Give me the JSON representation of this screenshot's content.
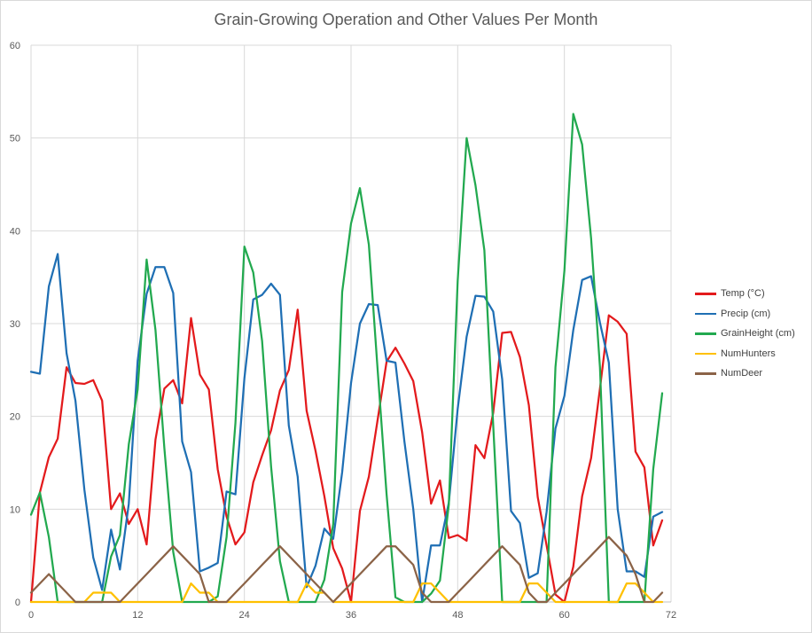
{
  "chart_data": {
    "type": "line",
    "title": "Grain-Growing Operation and Other Values Per Month",
    "xlabel": "",
    "ylabel": "",
    "xlim": [
      0,
      72
    ],
    "ylim": [
      0,
      60
    ],
    "x_ticks": [
      "0",
      "12",
      "24",
      "36",
      "48",
      "60",
      "72"
    ],
    "y_ticks": [
      "0",
      "10",
      "20",
      "30",
      "40",
      "50",
      "60"
    ],
    "grid": true,
    "legend_position": "right",
    "x": [
      0,
      1,
      2,
      3,
      4,
      5,
      6,
      7,
      8,
      9,
      10,
      11,
      12,
      13,
      14,
      15,
      16,
      17,
      18,
      19,
      20,
      21,
      22,
      23,
      24,
      25,
      26,
      27,
      28,
      29,
      30,
      31,
      32,
      33,
      34,
      35,
      36,
      37,
      38,
      39,
      40,
      41,
      42,
      43,
      44,
      45,
      46,
      47,
      48,
      49,
      50,
      51,
      52,
      53,
      54,
      55,
      56,
      57,
      58,
      59,
      60,
      61,
      62,
      63,
      64,
      65,
      66,
      67,
      68,
      69,
      70,
      71
    ],
    "series": [
      {
        "name": "Temp (°C)",
        "color": "#e31a1c",
        "values": [
          0,
          11.8,
          15.6,
          17.6,
          25.3,
          23.6,
          23.5,
          23.9,
          21.7,
          10,
          11.7,
          8.4,
          10,
          6.2,
          17.5,
          23,
          23.9,
          21.4,
          30.6,
          24.5,
          22.9,
          14.3,
          9.2,
          6.2,
          7.5,
          12.9,
          15.8,
          18.5,
          22.8,
          25,
          31.5,
          20.6,
          16.3,
          11.4,
          5.8,
          3.6,
          0,
          9.8,
          13.5,
          19.7,
          25.9,
          27.4,
          25.7,
          23.8,
          18.3,
          10.6,
          13.1,
          6.9,
          7.2,
          6.6,
          16.9,
          15.5,
          20.4,
          29,
          29.1,
          26.4,
          21.2,
          11.3,
          6.1,
          0.8,
          0,
          3.8,
          11.4,
          15.5,
          23,
          30.9,
          30.2,
          28.9,
          16.2,
          14.5,
          6.1,
          8.8
        ]
      },
      {
        "name": "Precip (cm)",
        "color": "#1f6fb4",
        "values": [
          24.8,
          24.6,
          34,
          37.5,
          26.8,
          21.7,
          12.1,
          4.8,
          1.3,
          7.8,
          3.5,
          10.6,
          26,
          33.2,
          36.1,
          36.1,
          33.3,
          17.3,
          14,
          3.3,
          3.7,
          4.2,
          11.9,
          11.6,
          24.1,
          32.6,
          33.1,
          34.3,
          33.1,
          19,
          13.5,
          1.6,
          3.9,
          7.9,
          6.8,
          14,
          23.6,
          30,
          32.1,
          32,
          26,
          25.8,
          17.3,
          10,
          0,
          6.1,
          6.1,
          10.7,
          20.8,
          28.6,
          33,
          32.9,
          31.3,
          24,
          9.8,
          8.5,
          2.6,
          3.1,
          9.7,
          18.7,
          22.2,
          29.3,
          34.7,
          35.1,
          30.1,
          25.8,
          10,
          3.3,
          3.3,
          2.7,
          9.2,
          9.7
        ]
      },
      {
        "name": "GrainHeight (cm)",
        "color": "#22a94f",
        "values": [
          9.4,
          11.8,
          7,
          0,
          0,
          0,
          0,
          0,
          0,
          4.9,
          7.2,
          17,
          22.9,
          36.9,
          29.3,
          16.6,
          5.4,
          0,
          0,
          0,
          0,
          0.6,
          7,
          19.3,
          38.3,
          35.5,
          28.1,
          14.6,
          4.4,
          0,
          0,
          0,
          0,
          2.4,
          8.4,
          33.4,
          40.8,
          44.6,
          38.5,
          24.9,
          11.6,
          0.5,
          0,
          0,
          0,
          0.9,
          2.3,
          10.5,
          34.6,
          50,
          44.9,
          37.9,
          19,
          0,
          0,
          0,
          0,
          0,
          0,
          25.3,
          35.7,
          52.6,
          49.3,
          39.2,
          25.3,
          0,
          0,
          0,
          0,
          0,
          14.3,
          22.5
        ]
      },
      {
        "name": "NumHunters",
        "color": "#ffc000",
        "values": [
          0,
          0,
          0,
          0,
          0,
          0,
          0,
          1,
          1,
          1,
          0,
          0,
          0,
          0,
          0,
          0,
          0,
          0,
          2,
          1,
          1,
          0,
          0,
          0,
          0,
          0,
          0,
          0,
          0,
          0,
          0,
          2,
          1,
          1,
          0,
          0,
          0,
          0,
          0,
          0,
          0,
          0,
          0,
          0,
          2,
          2,
          1,
          0,
          0,
          0,
          0,
          0,
          0,
          0,
          0,
          0,
          2,
          2,
          1,
          0,
          0,
          0,
          0,
          0,
          0,
          0,
          0,
          2,
          2,
          1,
          0,
          0
        ]
      },
      {
        "name": "NumDeer",
        "color": "#8b6347",
        "values": [
          1,
          2,
          3,
          2,
          1,
          0,
          0,
          0,
          0,
          0,
          0,
          1,
          2,
          3,
          4,
          5,
          6,
          5,
          4,
          3,
          0,
          0,
          0,
          1,
          2,
          3,
          4,
          5,
          6,
          5,
          4,
          3,
          2,
          1,
          0,
          1,
          2,
          3,
          4,
          5,
          6,
          6,
          5,
          4,
          1,
          0,
          0,
          0,
          1,
          2,
          3,
          4,
          5,
          6,
          5,
          4,
          1,
          0,
          0,
          1,
          2,
          3,
          4,
          5,
          6,
          7,
          6,
          5,
          3,
          0,
          0,
          1
        ]
      }
    ]
  }
}
